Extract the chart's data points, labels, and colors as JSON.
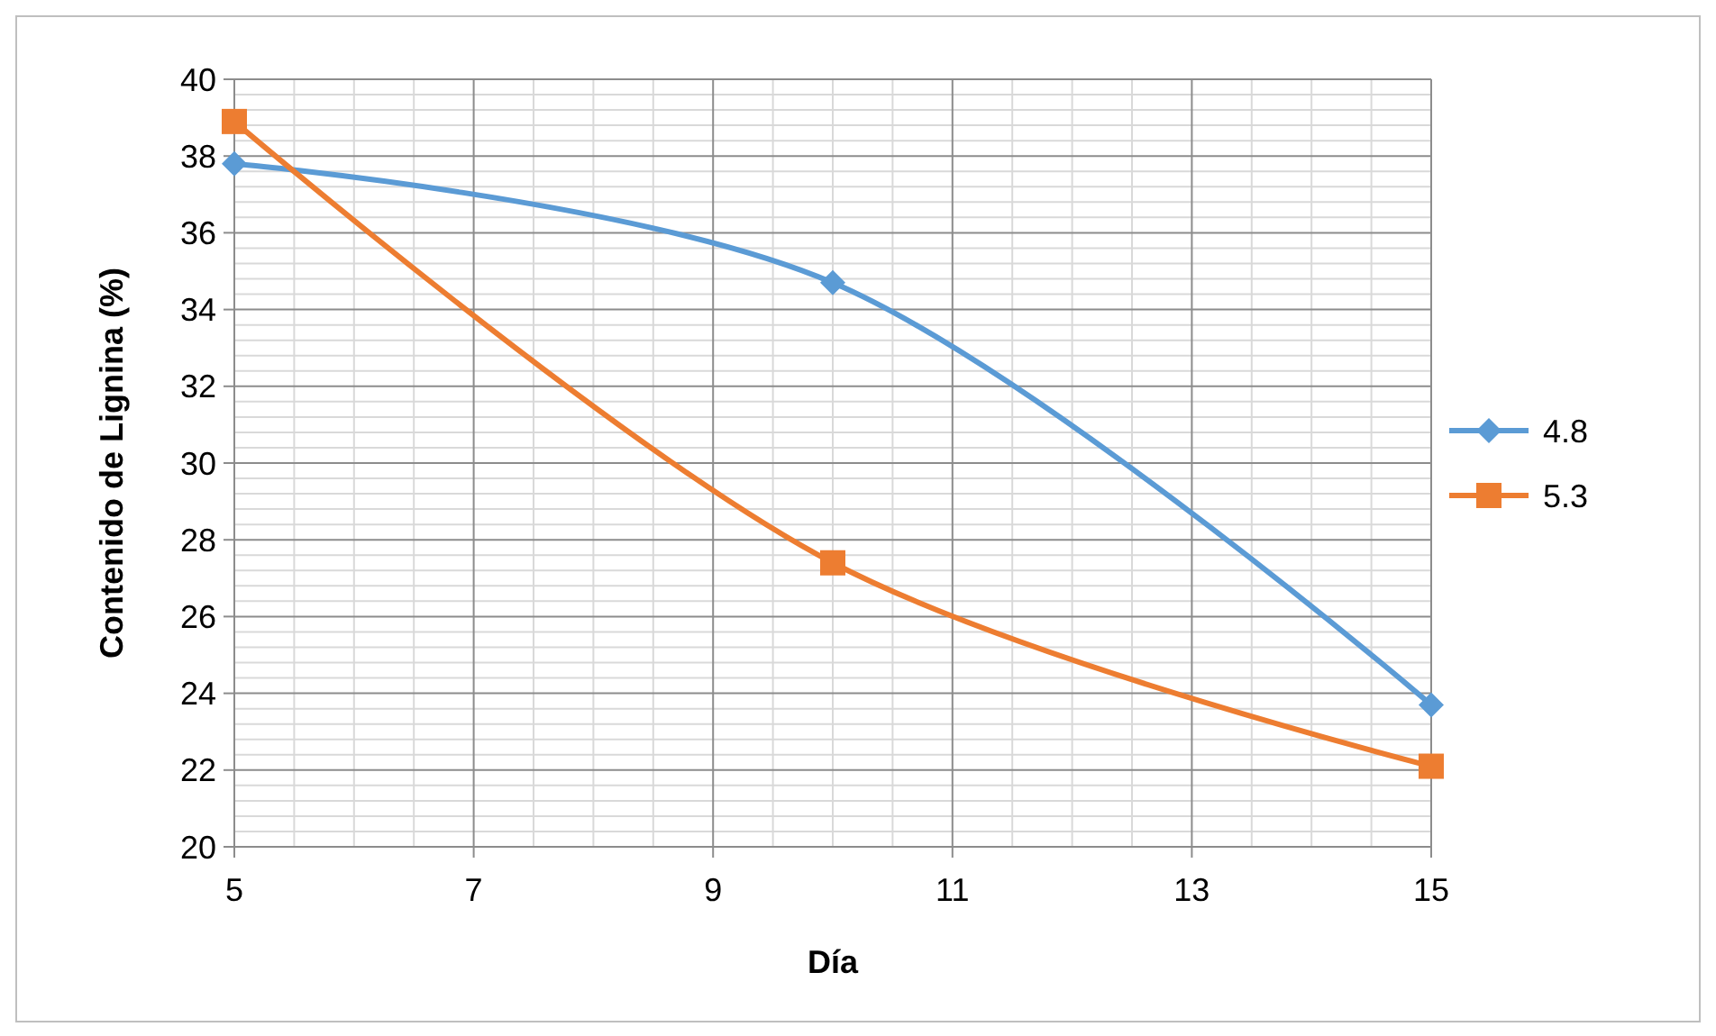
{
  "chart_data": {
    "type": "line",
    "xlabel": "Día",
    "ylabel": "Contenido de Lignina (%)",
    "x": [
      5,
      10,
      15
    ],
    "series": [
      {
        "name": "4.8",
        "color": "#5b9bd5",
        "values": [
          37.8,
          34.7,
          23.7
        ],
        "marker": "diamond"
      },
      {
        "name": "5.3",
        "color": "#ed7d31",
        "values": [
          38.9,
          27.4,
          22.1
        ],
        "marker": "square"
      }
    ],
    "xlim": [
      5,
      15
    ],
    "xticks": [
      5,
      7,
      9,
      11,
      13,
      15
    ],
    "ylim": [
      20,
      40
    ],
    "yticks": [
      20,
      22,
      24,
      26,
      28,
      30,
      32,
      34,
      36,
      38,
      40
    ],
    "grid": true,
    "legend": "right"
  }
}
